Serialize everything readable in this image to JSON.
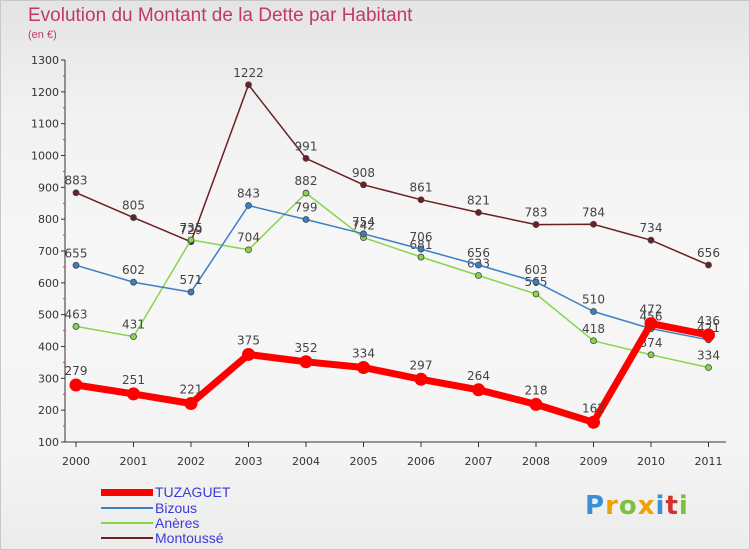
{
  "chart_data": {
    "type": "line",
    "title": "Evolution du Montant de la Dette par Habitant",
    "subtitle": "(en €)",
    "categories": [
      "2000",
      "2001",
      "2002",
      "2003",
      "2004",
      "2005",
      "2006",
      "2007",
      "2008",
      "2009",
      "2010",
      "2011"
    ],
    "yticks": [
      100,
      200,
      300,
      400,
      500,
      600,
      700,
      800,
      900,
      1000,
      1100,
      1200,
      1300
    ],
    "ylim": [
      100,
      1300
    ],
    "series": [
      {
        "name": "Montoussé",
        "color": "#6b1f22",
        "values": [
          883,
          805,
          729,
          1222,
          991,
          908,
          861,
          821,
          783,
          784,
          734,
          656
        ]
      },
      {
        "name": "Anères",
        "color": "#88d44a",
        "values": [
          463,
          431,
          735,
          704,
          882,
          742,
          681,
          623,
          565,
          418,
          374,
          334
        ]
      },
      {
        "name": "Bizous",
        "color": "#3c7fc4",
        "values": [
          655,
          602,
          571,
          843,
          799,
          754,
          706,
          656,
          603,
          510,
          456,
          421
        ]
      },
      {
        "name": "TUZAGUET",
        "color": "#ff0000",
        "values": [
          279,
          251,
          221,
          375,
          352,
          334,
          297,
          264,
          218,
          162,
          472,
          436
        ]
      }
    ],
    "legend_position": "bottom-left",
    "grid": false
  },
  "logo": {
    "letters": [
      "P",
      "r",
      "o",
      "x",
      "i",
      "t",
      "i"
    ],
    "colors": [
      "#3a8fd6",
      "#f2a000",
      "#7cc13e",
      "#f2a000",
      "#3a8fd6",
      "#d0342c",
      "#7cc13e"
    ]
  }
}
